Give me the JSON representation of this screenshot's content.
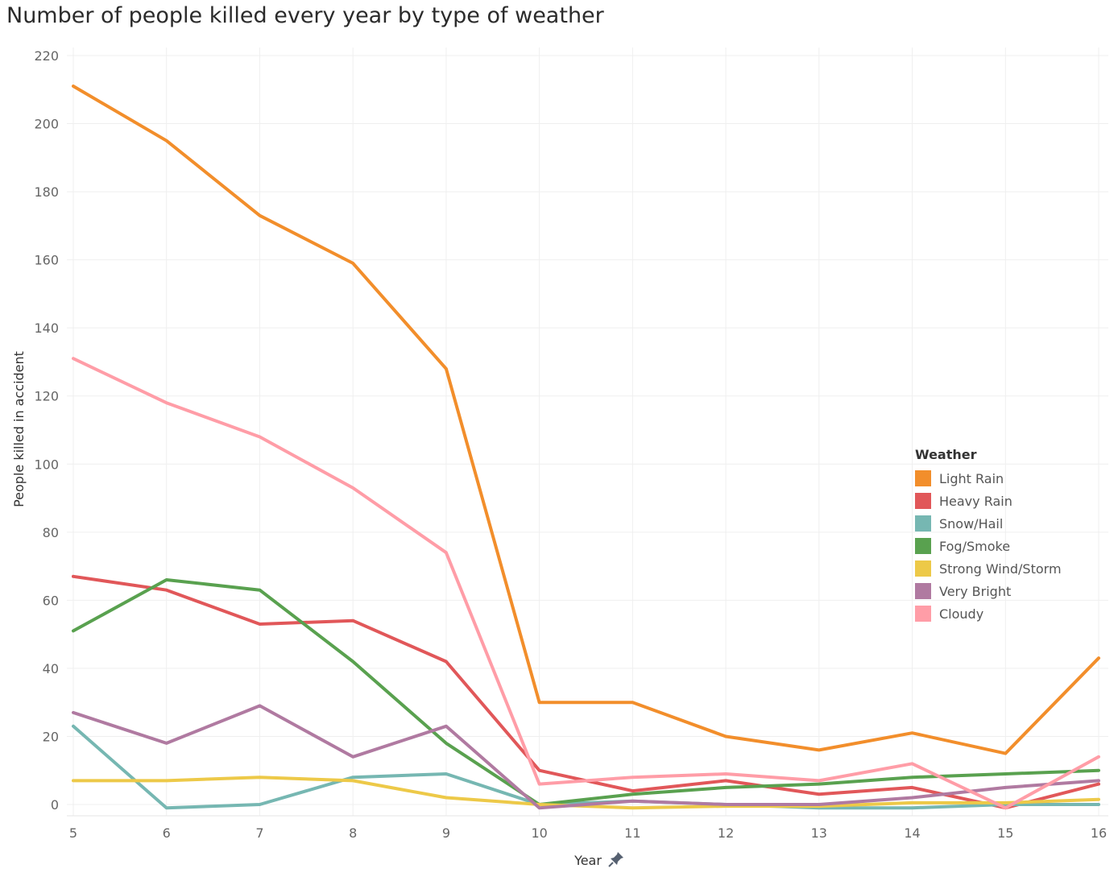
{
  "chart_data": {
    "type": "line",
    "title": "Number of people killed every year by type of weather",
    "xlabel": "Year",
    "ylabel": "People killed in accident",
    "x": [
      5,
      6,
      7,
      8,
      9,
      10,
      11,
      12,
      13,
      14,
      15,
      16
    ],
    "xlim": [
      5,
      16
    ],
    "ylim": [
      -2,
      222
    ],
    "yticks": [
      0,
      20,
      40,
      60,
      80,
      100,
      120,
      140,
      160,
      180,
      200,
      220
    ],
    "grid": true,
    "legend_title": "Weather",
    "legend_position": "right",
    "series": [
      {
        "name": "Light Rain",
        "color": "#f28e2b",
        "values": [
          211,
          195,
          173,
          159,
          128,
          30,
          30,
          20,
          16,
          21,
          15,
          43
        ]
      },
      {
        "name": "Heavy Rain",
        "color": "#e15759",
        "values": [
          67,
          63,
          53,
          54,
          42,
          10,
          4,
          7,
          3,
          5,
          -1,
          6
        ]
      },
      {
        "name": "Snow/Hail",
        "color": "#76b7b2",
        "values": [
          23,
          -1,
          0,
          8,
          9,
          0,
          1,
          0,
          -1,
          -1,
          0,
          0
        ]
      },
      {
        "name": "Fog/Smoke",
        "color": "#59a14f",
        "values": [
          51,
          66,
          63,
          42,
          18,
          0,
          3,
          5,
          6,
          8,
          9,
          10
        ]
      },
      {
        "name": "Strong Wind/Storm",
        "color": "#edc948",
        "values": [
          7,
          7,
          8,
          7,
          2,
          0,
          -1,
          -0.5,
          -0.5,
          0.5,
          0.5,
          1.5
        ]
      },
      {
        "name": "Very Bright",
        "color": "#b07aa1",
        "values": [
          27,
          18,
          29,
          14,
          23,
          -1,
          1,
          0,
          0,
          2,
          5,
          7
        ]
      },
      {
        "name": "Cloudy",
        "color": "#ff9da7",
        "values": [
          131,
          118,
          108,
          93,
          74,
          6,
          8,
          9,
          7,
          12,
          -1,
          14
        ]
      }
    ]
  }
}
